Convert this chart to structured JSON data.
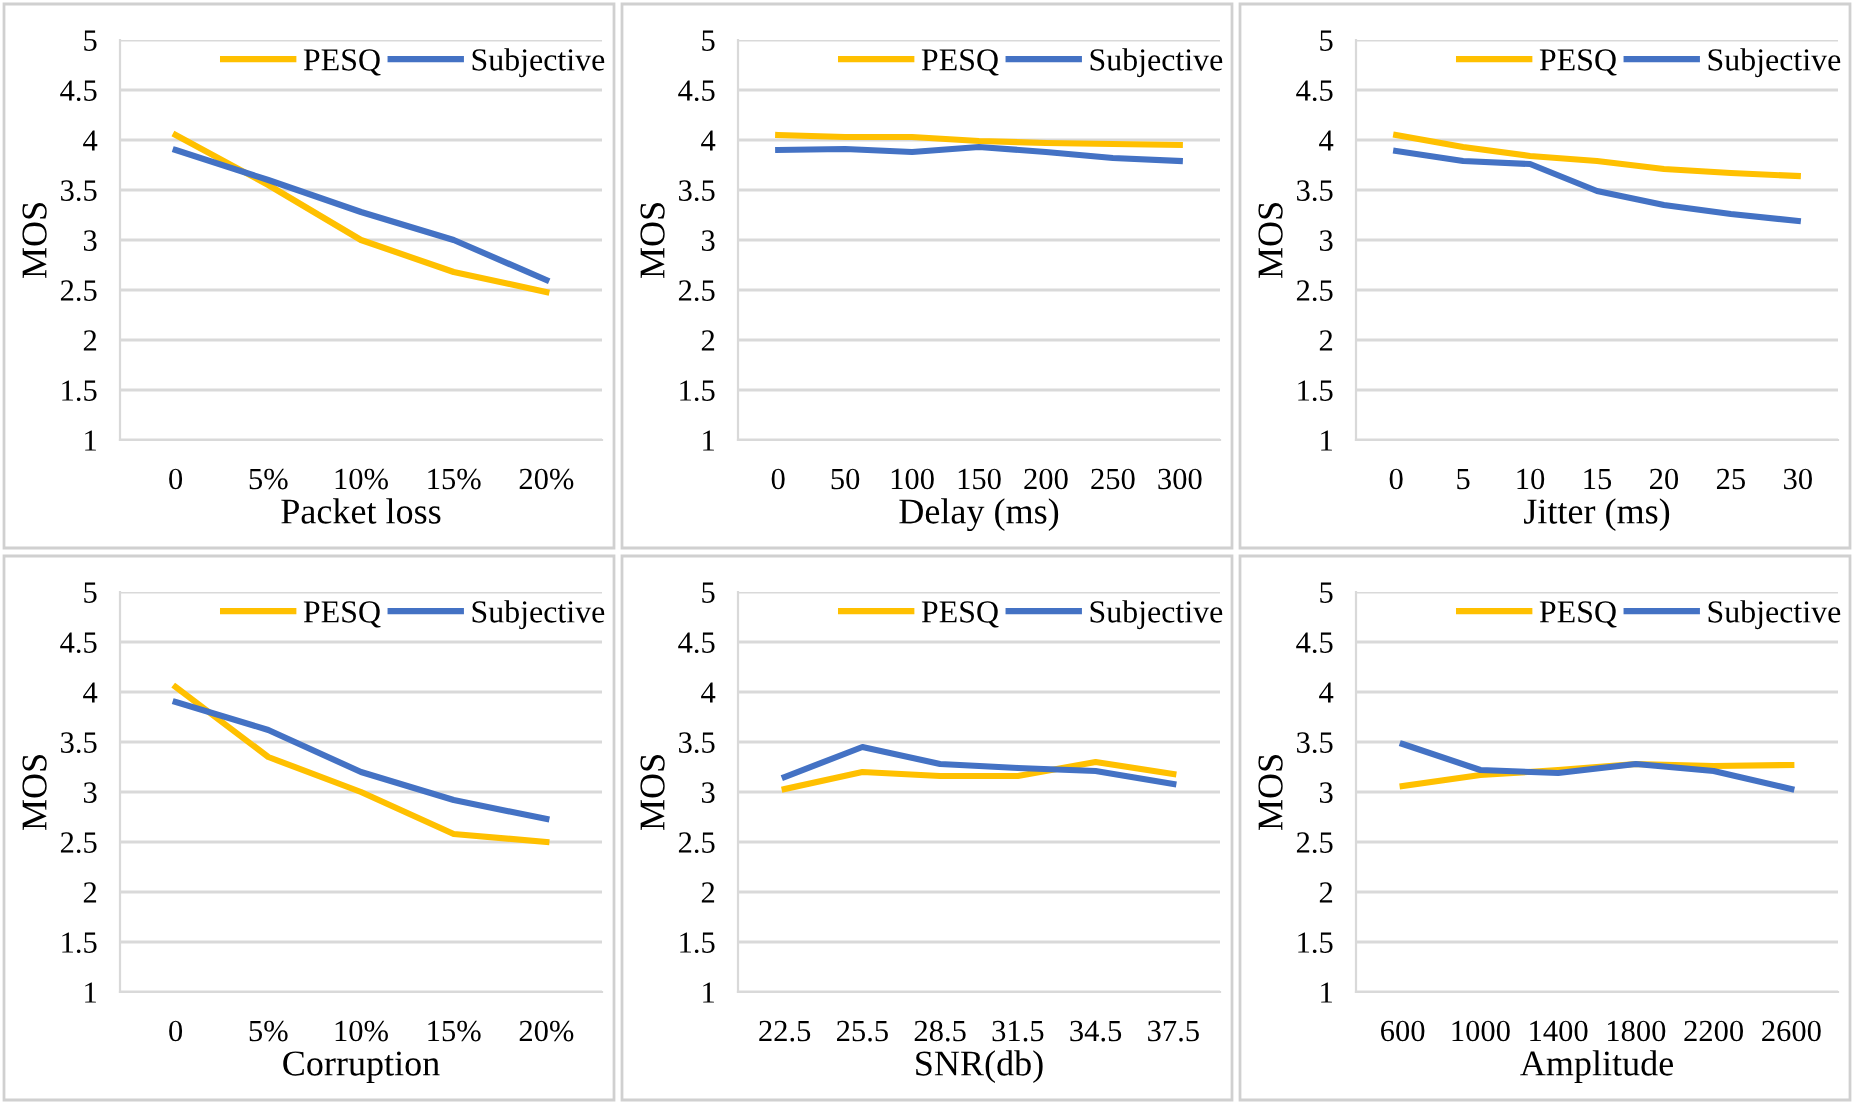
{
  "chart_data": [
    {
      "type": "line",
      "xlabel": "Packet loss",
      "ylabel": "MOS",
      "categories": [
        "0",
        "5%",
        "10%",
        "15%",
        "20%"
      ],
      "ylim": [
        1,
        5
      ],
      "yticks": [
        1,
        1.5,
        2,
        2.5,
        3,
        3.5,
        4,
        4.5,
        5
      ],
      "grid": "y",
      "legend": "top right",
      "marker": "none",
      "series": [
        {
          "name": "PESQ",
          "color": "#ffc000",
          "values": [
            4.05,
            3.55,
            3.0,
            2.68,
            2.48
          ]
        },
        {
          "name": "Subjective",
          "color": "#4472c4",
          "values": [
            3.9,
            3.6,
            3.28,
            3.0,
            2.6
          ]
        }
      ]
    },
    {
      "type": "line",
      "xlabel": "Delay (ms)",
      "ylabel": "MOS",
      "categories": [
        "0",
        "50",
        "100",
        "150",
        "200",
        "250",
        "300"
      ],
      "ylim": [
        1,
        5
      ],
      "yticks": [
        1,
        1.5,
        2,
        2.5,
        3,
        3.5,
        4,
        4.5,
        5
      ],
      "grid": "y",
      "legend": "top right",
      "marker": "none",
      "series": [
        {
          "name": "PESQ",
          "color": "#ffc000",
          "values": [
            4.05,
            4.03,
            4.03,
            3.99,
            3.97,
            3.96,
            3.95
          ]
        },
        {
          "name": "Subjective",
          "color": "#4472c4",
          "values": [
            3.9,
            3.91,
            3.88,
            3.93,
            3.88,
            3.82,
            3.79
          ]
        }
      ]
    },
    {
      "type": "line",
      "xlabel": "Jitter (ms)",
      "ylabel": "MOS",
      "categories": [
        "0",
        "5",
        "10",
        "15",
        "20",
        "25",
        "30"
      ],
      "ylim": [
        1,
        5
      ],
      "yticks": [
        1,
        1.5,
        2,
        2.5,
        3,
        3.5,
        4,
        4.5,
        5
      ],
      "grid": "y",
      "legend": "top right",
      "marker": "none",
      "series": [
        {
          "name": "PESQ",
          "color": "#ffc000",
          "values": [
            4.05,
            3.93,
            3.84,
            3.79,
            3.71,
            3.67,
            3.64
          ]
        },
        {
          "name": "Subjective",
          "color": "#4472c4",
          "values": [
            3.89,
            3.79,
            3.76,
            3.49,
            3.35,
            3.26,
            3.19
          ]
        }
      ]
    },
    {
      "type": "line",
      "xlabel": "Corruption",
      "ylabel": "MOS",
      "categories": [
        "0",
        "5%",
        "10%",
        "15%",
        "20%"
      ],
      "ylim": [
        1,
        5
      ],
      "yticks": [
        1,
        1.5,
        2,
        2.5,
        3,
        3.5,
        4,
        4.5,
        5
      ],
      "grid": "y",
      "legend": "top right",
      "marker": "none",
      "series": [
        {
          "name": "PESQ",
          "color": "#ffc000",
          "values": [
            4.05,
            3.35,
            3.0,
            2.58,
            2.5
          ]
        },
        {
          "name": "Subjective",
          "color": "#4472c4",
          "values": [
            3.9,
            3.62,
            3.2,
            2.92,
            2.73
          ]
        }
      ]
    },
    {
      "type": "line",
      "xlabel": "SNR(db)",
      "ylabel": "MOS",
      "categories": [
        "22.5",
        "25.5",
        "28.5",
        "31.5",
        "34.5",
        "37.5"
      ],
      "ylim": [
        1,
        5
      ],
      "yticks": [
        1,
        1.5,
        2,
        2.5,
        3,
        3.5,
        4,
        4.5,
        5
      ],
      "grid": "y",
      "legend": "top right",
      "marker": "none",
      "series": [
        {
          "name": "PESQ",
          "color": "#ffc000",
          "values": [
            3.03,
            3.2,
            3.16,
            3.16,
            3.3,
            3.18
          ]
        },
        {
          "name": "Subjective",
          "color": "#4472c4",
          "values": [
            3.15,
            3.45,
            3.28,
            3.24,
            3.21,
            3.08
          ]
        }
      ]
    },
    {
      "type": "line",
      "xlabel": "Amplitude",
      "ylabel": "MOS",
      "categories": [
        "600",
        "1000",
        "1400",
        "1800",
        "2200",
        "2600"
      ],
      "ylim": [
        1,
        5
      ],
      "yticks": [
        1,
        1.5,
        2,
        2.5,
        3,
        3.5,
        4,
        4.5,
        5
      ],
      "grid": "y",
      "legend": "top right",
      "marker": "none",
      "series": [
        {
          "name": "PESQ",
          "color": "#ffc000",
          "values": [
            3.06,
            3.17,
            3.22,
            3.28,
            3.26,
            3.27
          ]
        },
        {
          "name": "Subjective",
          "color": "#4472c4",
          "values": [
            3.48,
            3.22,
            3.19,
            3.28,
            3.21,
            3.03
          ]
        }
      ]
    }
  ]
}
